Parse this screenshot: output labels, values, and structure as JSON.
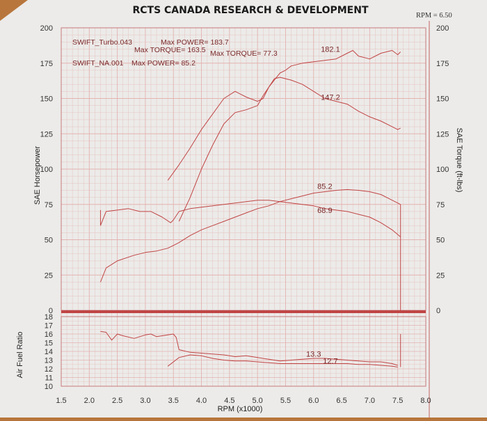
{
  "colors": {
    "desk": "#b8763c",
    "paper": "#ecebe9",
    "grid": "#e3b3b0",
    "frame": "#c97a7a",
    "trace": "#c04545",
    "text": "#222222"
  },
  "chart_data": {
    "title": "RCTS CANADA RESEARCH & DEVELOPMENT",
    "rpm_readout": "RPM = 6.50",
    "type": "line",
    "xlabel": "RPM (x1000)",
    "xlim": [
      1.5,
      8.0
    ],
    "x_ticks": [
      "1.5",
      "2.0",
      "2.5",
      "3.0",
      "3.5",
      "4.0",
      "4.5",
      "5.0",
      "5.5",
      "6.0",
      "6.5",
      "7.0",
      "7.5",
      "8.0"
    ],
    "power_panel": {
      "ylabel_left": "SAE Horsepower",
      "ylabel_right": "SAE Torque (ft-lbs)",
      "ylim": [
        0,
        200
      ],
      "y_ticks_left": [
        "0",
        "25",
        "50",
        "75",
        "100",
        "125",
        "150",
        "175",
        "200"
      ],
      "y_ticks_right": [
        "0",
        "25",
        "50",
        "75",
        "100",
        "125",
        "150",
        "175",
        "200"
      ]
    },
    "afr_panel": {
      "ylabel": "Air Fuel Ratio",
      "ylim": [
        10,
        18
      ],
      "y_ticks": [
        "10",
        "11",
        "12",
        "13",
        "14",
        "15",
        "16",
        "17",
        "18"
      ]
    },
    "legend": {
      "turbo_name": "SWIFT_Turbo.043",
      "turbo_max_power": "Max POWER= 183.7",
      "turbo_max_torque": "Max TORQUE= 163.5",
      "na_name": "SWIFT_NA.001",
      "na_max_power": "Max POWER= 85.2",
      "na_max_torque": "Max TORQUE= 77.3"
    },
    "annotations": [
      {
        "text": "182.1",
        "x": 6.3,
        "y": 183
      },
      {
        "text": "147.2",
        "x": 6.3,
        "y": 149
      },
      {
        "text": "85.2",
        "x": 6.2,
        "y": 86
      },
      {
        "text": "68.9",
        "x": 6.2,
        "y": 69
      }
    ],
    "afr_annotations": [
      {
        "text": "13.3",
        "x": 6.0,
        "y": 13.4
      },
      {
        "text": "12.7",
        "x": 6.3,
        "y": 12.6
      }
    ],
    "series": [
      {
        "name": "SWIFT_Turbo.043",
        "quantity": "horsepower",
        "panel": "power",
        "x": [
          3.6,
          3.8,
          4.0,
          4.2,
          4.4,
          4.6,
          4.8,
          5.0,
          5.1,
          5.2,
          5.3,
          5.4,
          5.5,
          5.6,
          5.8,
          6.0,
          6.2,
          6.4,
          6.6,
          6.7,
          6.8,
          7.0,
          7.2,
          7.4,
          7.5,
          7.55
        ],
        "y": [
          63,
          80,
          100,
          117,
          132,
          140,
          142,
          145,
          152,
          158,
          163,
          168,
          170,
          173,
          175,
          176,
          177,
          178,
          182,
          184,
          180,
          178,
          182,
          184,
          181,
          183
        ]
      },
      {
        "name": "SWIFT_Turbo.043",
        "quantity": "torque",
        "panel": "power",
        "x": [
          3.4,
          3.6,
          3.8,
          4.0,
          4.2,
          4.4,
          4.6,
          4.7,
          4.8,
          5.0,
          5.1,
          5.2,
          5.3,
          5.4,
          5.6,
          5.8,
          6.0,
          6.2,
          6.4,
          6.6,
          6.8,
          7.0,
          7.2,
          7.4,
          7.5,
          7.55
        ],
        "y": [
          92,
          103,
          115,
          128,
          139,
          150,
          155,
          153,
          151,
          148,
          150,
          158,
          164,
          165,
          163,
          160,
          155,
          150,
          148,
          146,
          141,
          137,
          134,
          130,
          128,
          129
        ]
      },
      {
        "name": "SWIFT_NA.001",
        "quantity": "horsepower",
        "panel": "power",
        "x": [
          2.2,
          2.3,
          2.5,
          2.8,
          3.0,
          3.2,
          3.4,
          3.6,
          3.8,
          4.0,
          4.2,
          4.4,
          4.6,
          4.8,
          5.0,
          5.2,
          5.4,
          5.6,
          5.8,
          6.0,
          6.2,
          6.4,
          6.6,
          6.8,
          7.0,
          7.2,
          7.4,
          7.55
        ],
        "y": [
          20,
          30,
          35,
          39,
          41,
          42,
          44,
          48,
          53,
          57,
          60,
          63,
          66,
          69,
          72,
          74,
          77,
          79,
          81,
          83,
          84,
          85,
          85.5,
          85,
          84,
          82,
          78,
          75
        ]
      },
      {
        "name": "SWIFT_NA.001",
        "quantity": "torque",
        "panel": "power",
        "x": [
          2.2,
          2.3,
          2.5,
          2.7,
          2.9,
          3.1,
          3.3,
          3.45,
          3.5,
          3.6,
          3.8,
          4.0,
          4.2,
          4.4,
          4.6,
          4.8,
          5.0,
          5.2,
          5.4,
          5.6,
          5.8,
          6.0,
          6.2,
          6.4,
          6.6,
          6.8,
          7.0,
          7.2,
          7.4,
          7.55
        ],
        "y": [
          60,
          70,
          71,
          72,
          70,
          70,
          66,
          62,
          64,
          70,
          72,
          73,
          74,
          75,
          76,
          77,
          78,
          78,
          77,
          76,
          75,
          74,
          72,
          71,
          70,
          68,
          66,
          62,
          57,
          52
        ]
      },
      {
        "name": "SWIFT_NA.001",
        "quantity": "air fuel ratio",
        "panel": "afr",
        "x": [
          2.2,
          2.3,
          2.4,
          2.5,
          2.6,
          2.8,
          3.0,
          3.1,
          3.2,
          3.4,
          3.5,
          3.55,
          3.6,
          3.8,
          4.0,
          4.2,
          4.4,
          4.6,
          4.8,
          5.0,
          5.2,
          5.4,
          5.6,
          5.8,
          6.0,
          6.2,
          6.4,
          6.6,
          6.8,
          7.0,
          7.2,
          7.4,
          7.5
        ],
        "y": [
          16.3,
          16.2,
          15.3,
          16.0,
          15.8,
          15.5,
          15.9,
          16.0,
          15.7,
          15.9,
          16.0,
          15.6,
          14.2,
          13.9,
          13.8,
          13.7,
          13.6,
          13.4,
          13.5,
          13.3,
          13.1,
          12.9,
          13.0,
          13.1,
          13.2,
          13.2,
          13.1,
          13.0,
          12.9,
          12.8,
          12.8,
          12.6,
          12.4
        ]
      },
      {
        "name": "SWIFT_Turbo.043",
        "quantity": "air fuel ratio",
        "panel": "afr",
        "x": [
          3.4,
          3.6,
          3.8,
          4.0,
          4.2,
          4.4,
          4.6,
          4.8,
          5.0,
          5.2,
          5.4,
          5.6,
          5.8,
          6.0,
          6.2,
          6.4,
          6.6,
          6.8,
          7.0,
          7.2,
          7.4,
          7.5
        ],
        "y": [
          12.3,
          13.3,
          13.6,
          13.5,
          13.2,
          13.0,
          12.9,
          12.9,
          12.8,
          12.7,
          12.6,
          12.6,
          12.6,
          12.6,
          12.6,
          12.6,
          12.6,
          12.5,
          12.5,
          12.4,
          12.3,
          12.2
        ]
      }
    ]
  }
}
